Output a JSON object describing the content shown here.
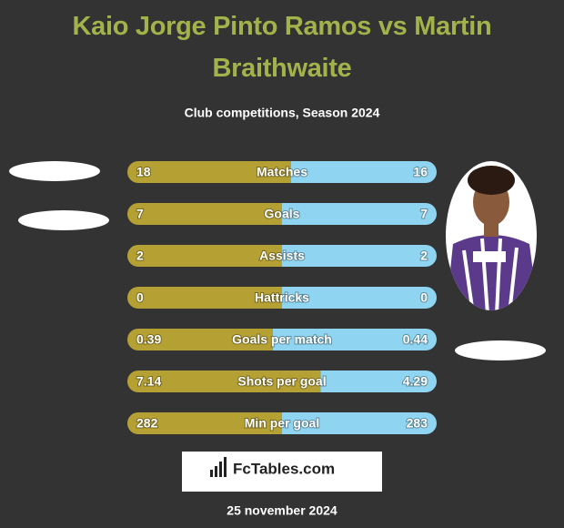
{
  "title": "Kaio Jorge Pinto Ramos vs Martin Braithwaite",
  "subtitle": "Club competitions, Season 2024",
  "rows": [
    {
      "label": "Matches",
      "left": 18,
      "right": 16
    },
    {
      "label": "Goals",
      "left": 7,
      "right": 7
    },
    {
      "label": "Assists",
      "left": 2,
      "right": 2
    },
    {
      "label": "Hattricks",
      "left": 0,
      "right": 0
    },
    {
      "label": "Goals per match",
      "left": 0.39,
      "right": 0.44
    },
    {
      "label": "Shots per goal",
      "left": 7.14,
      "right": 4.29
    },
    {
      "label": "Min per goal",
      "left": 282,
      "right": 283
    }
  ],
  "logo": "FcTables.com",
  "date": "25 november 2024",
  "left_color": "#b5a034",
  "right_color": "#8fd4f0"
}
